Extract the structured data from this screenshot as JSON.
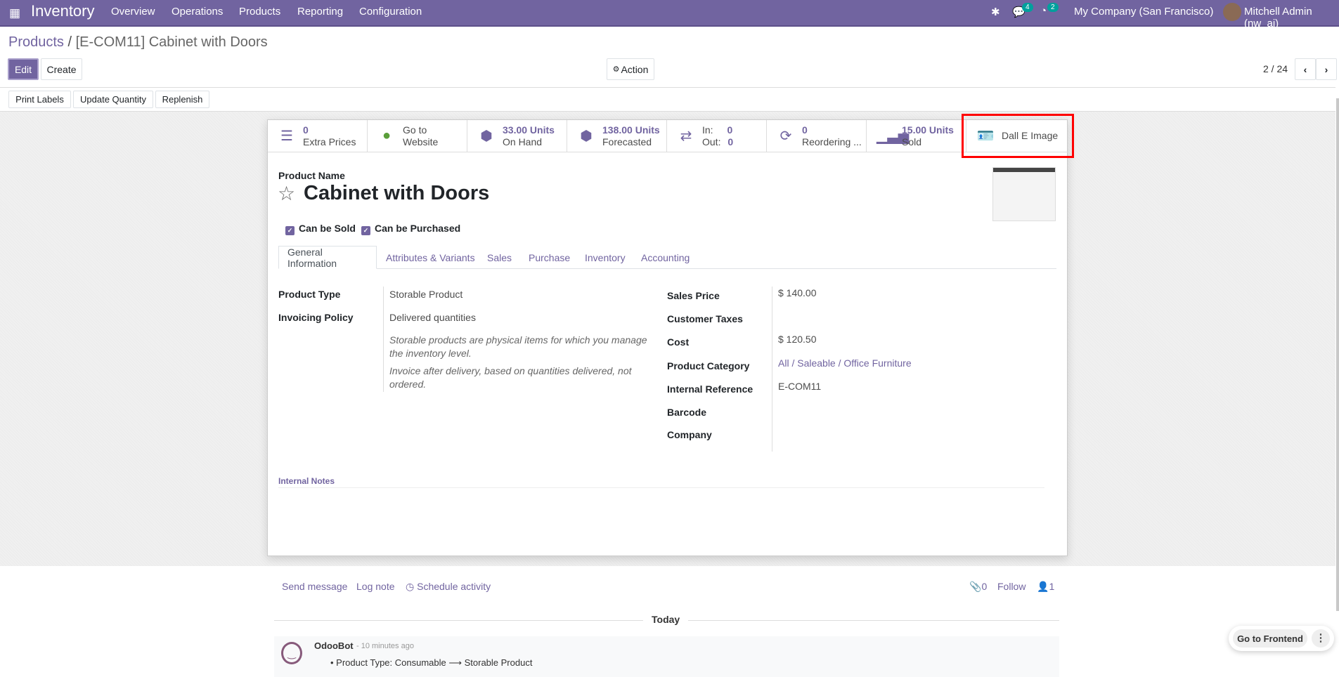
{
  "navbar": {
    "app": "Inventory",
    "menu": [
      "Overview",
      "Operations",
      "Products",
      "Reporting",
      "Configuration"
    ],
    "messages_count": "4",
    "activities_count": "2",
    "company": "My Company (San Francisco)",
    "user": "Mitchell Admin (nw_ai)"
  },
  "breadcrumb": {
    "parent": "Products",
    "separator": "/",
    "current": "[E-COM11] Cabinet with Doors"
  },
  "toolbar": {
    "edit": "Edit",
    "create": "Create",
    "action": "Action",
    "pager": "2 / 24"
  },
  "header_buttons": [
    "Print Labels",
    "Update Quantity",
    "Replenish"
  ],
  "stat_buttons": [
    {
      "icon": "list-icon",
      "value": "0",
      "label": "Extra Prices"
    },
    {
      "icon": "globe-icon",
      "value": "Go to",
      "label": "Website"
    },
    {
      "icon": "cubes-icon",
      "value": "33.00 Units",
      "label": "On Hand"
    },
    {
      "icon": "cubes-icon",
      "value": "138.00 Units",
      "label": "Forecasted"
    },
    {
      "icon": "exchange-icon",
      "in_label": "In:",
      "in_value": "0",
      "out_label": "Out:",
      "out_value": "0"
    },
    {
      "icon": "refresh-icon",
      "value": "0",
      "label": "Reordering ..."
    },
    {
      "icon": "signal-icon",
      "value": "15.00 Units",
      "label": "Sold"
    },
    {
      "icon": "id-card-icon",
      "label": "Dall E Image"
    }
  ],
  "highlight_color": "#ff0000",
  "product": {
    "name_label": "Product Name",
    "name": "Cabinet with Doors",
    "can_be_sold": "Can be Sold",
    "can_be_purchased": "Can be Purchased"
  },
  "tabs": [
    "General Information",
    "Attributes & Variants",
    "Sales",
    "Purchase",
    "Inventory",
    "Accounting"
  ],
  "general": {
    "left": [
      {
        "label": "Product Type",
        "value": "Storable Product"
      },
      {
        "label": "Invoicing Policy",
        "value": "Delivered quantities"
      }
    ],
    "help1": "Storable products are physical items for which you manage the inventory level.",
    "help2": "Invoice after delivery, based on quantities delivered, not ordered.",
    "right": [
      {
        "label": "Sales Price",
        "value": "$ 140.00"
      },
      {
        "label": "Customer Taxes",
        "value": ""
      },
      {
        "label": "Cost",
        "value": "$ 120.50"
      },
      {
        "label": "Product Category",
        "value": "All / Saleable / Office Furniture"
      },
      {
        "label": "Internal Reference",
        "value": "E-COM11"
      },
      {
        "label": "Barcode",
        "value": ""
      },
      {
        "label": "Company",
        "value": ""
      }
    ],
    "internal_notes": "Internal Notes"
  },
  "chatter": {
    "send_message": "Send message",
    "log_note": "Log note",
    "schedule_activity": "Schedule activity",
    "attachments": "0",
    "follow": "Follow",
    "followers": "1",
    "today": "Today",
    "message": {
      "author": "OdooBot",
      "time": "- 10 minutes ago",
      "change": "Product Type: Consumable ⟶ Storable Product"
    }
  },
  "frontend_button": "Go to Frontend"
}
